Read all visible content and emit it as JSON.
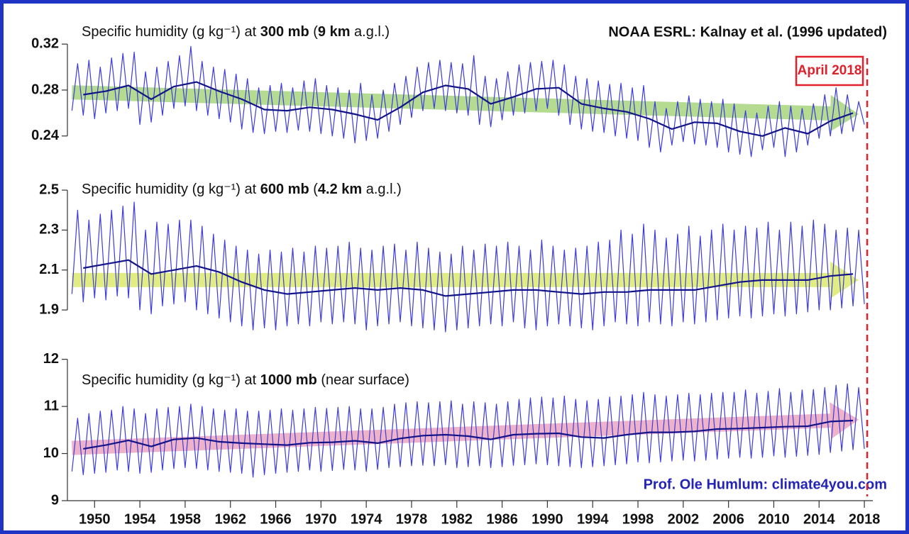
{
  "chart_data": {
    "type": "line",
    "source": "NOAA ESRL: Kalnay et al. (1996 updated)",
    "credit": "Prof. Ole Humlum: climate4you.com",
    "marker_label": "April 2018",
    "marker_x": 2018.25,
    "marker_color": "#e0202a",
    "xlim": [
      1947.6,
      2020
    ],
    "xticks": [
      1950,
      1954,
      1958,
      1962,
      1966,
      1970,
      1974,
      1978,
      1982,
      1986,
      1990,
      1994,
      1998,
      2002,
      2006,
      2010,
      2014,
      2018
    ],
    "x": [
      1948,
      1948.5,
      1949,
      1949.5,
      1950,
      1950.5,
      1951,
      1951.5,
      1952,
      1952.5,
      1953,
      1953.5,
      1954,
      1954.5,
      1955,
      1955.5,
      1956,
      1956.5,
      1957,
      1957.5,
      1958,
      1958.5,
      1959,
      1959.5,
      1960,
      1960.5,
      1961,
      1961.5,
      1962,
      1962.5,
      1963,
      1963.5,
      1964,
      1964.5,
      1965,
      1965.5,
      1966,
      1966.5,
      1967,
      1967.5,
      1968,
      1968.5,
      1969,
      1969.5,
      1970,
      1970.5,
      1971,
      1971.5,
      1972,
      1972.5,
      1973,
      1973.5,
      1974,
      1974.5,
      1975,
      1975.5,
      1976,
      1976.5,
      1977,
      1977.5,
      1978,
      1978.5,
      1979,
      1979.5,
      1980,
      1980.5,
      1981,
      1981.5,
      1982,
      1982.5,
      1983,
      1983.5,
      1984,
      1984.5,
      1985,
      1985.5,
      1986,
      1986.5,
      1987,
      1987.5,
      1988,
      1988.5,
      1989,
      1989.5,
      1990,
      1990.5,
      1991,
      1991.5,
      1992,
      1992.5,
      1993,
      1993.5,
      1994,
      1994.5,
      1995,
      1995.5,
      1996,
      1996.5,
      1997,
      1997.5,
      1998,
      1998.5,
      1999,
      1999.5,
      2000,
      2000.5,
      2001,
      2001.5,
      2002,
      2002.5,
      2003,
      2003.5,
      2004,
      2004.5,
      2005,
      2005.5,
      2006,
      2006.5,
      2007,
      2007.5,
      2008,
      2008.5,
      2009,
      2009.5,
      2010,
      2010.5,
      2011,
      2011.5,
      2012,
      2012.5,
      2013,
      2013.5,
      2014,
      2014.5,
      2015,
      2015.5,
      2016,
      2016.5,
      2017,
      2017.5,
      2018
    ],
    "smooth_x": [
      1949,
      1951,
      1953,
      1955,
      1957,
      1959,
      1961,
      1963,
      1965,
      1967,
      1969,
      1971,
      1973,
      1975,
      1977,
      1979,
      1981,
      1983,
      1985,
      1987,
      1989,
      1991,
      1993,
      1995,
      1997,
      1999,
      2001,
      2003,
      2005,
      2007,
      2009,
      2011,
      2013,
      2015,
      2017
    ],
    "panels": [
      {
        "title_parts": [
          "Specific humidity (g kg⁻¹) at ",
          "300 mb",
          " (",
          "9 km",
          " a.g.l.)"
        ],
        "ylim": [
          0.217,
          0.33
        ],
        "yticks": [
          0.24,
          0.28,
          0.32
        ],
        "trend": {
          "x": [
            1948,
            2017.5
          ],
          "values": [
            0.278,
            0.259
          ],
          "color": "#9ccf6a"
        },
        "series": [
          {
            "color": "#3b3be0",
            "values": [
              0.262,
              0.303,
              0.258,
              0.306,
              0.255,
              0.3,
              0.26,
              0.308,
              0.262,
              0.312,
              0.264,
              0.313,
              0.25,
              0.296,
              0.252,
              0.3,
              0.258,
              0.305,
              0.264,
              0.31,
              0.266,
              0.318,
              0.262,
              0.305,
              0.258,
              0.3,
              0.255,
              0.298,
              0.252,
              0.294,
              0.246,
              0.29,
              0.243,
              0.282,
              0.242,
              0.284,
              0.244,
              0.286,
              0.243,
              0.282,
              0.245,
              0.288,
              0.244,
              0.29,
              0.242,
              0.284,
              0.24,
              0.282,
              0.238,
              0.28,
              0.234,
              0.286,
              0.236,
              0.276,
              0.238,
              0.28,
              0.244,
              0.286,
              0.25,
              0.292,
              0.256,
              0.3,
              0.262,
              0.304,
              0.264,
              0.306,
              0.262,
              0.304,
              0.26,
              0.303,
              0.258,
              0.31,
              0.25,
              0.292,
              0.248,
              0.29,
              0.254,
              0.296,
              0.258,
              0.302,
              0.26,
              0.304,
              0.262,
              0.305,
              0.264,
              0.306,
              0.258,
              0.302,
              0.25,
              0.292,
              0.246,
              0.29,
              0.244,
              0.288,
              0.243,
              0.285,
              0.24,
              0.286,
              0.238,
              0.282,
              0.236,
              0.284,
              0.23,
              0.27,
              0.226,
              0.264,
              0.232,
              0.27,
              0.235,
              0.275,
              0.233,
              0.272,
              0.232,
              0.27,
              0.23,
              0.272,
              0.226,
              0.268,
              0.224,
              0.262,
              0.222,
              0.26,
              0.228,
              0.266,
              0.23,
              0.27,
              0.222,
              0.266,
              0.226,
              0.264,
              0.232,
              0.268,
              0.238,
              0.276,
              0.24,
              0.282,
              0.242,
              0.276,
              0.244,
              0.27,
              0.25
            ]
          },
          {
            "color": "#14148a",
            "smooth": true,
            "values": [
              0.276,
              0.279,
              0.284,
              0.272,
              0.283,
              0.287,
              0.279,
              0.272,
              0.263,
              0.262,
              0.265,
              0.263,
              0.259,
              0.254,
              0.265,
              0.278,
              0.284,
              0.281,
              0.268,
              0.274,
              0.281,
              0.282,
              0.268,
              0.264,
              0.261,
              0.255,
              0.246,
              0.252,
              0.251,
              0.244,
              0.24,
              0.247,
              0.242,
              0.253,
              0.26
            ]
          }
        ]
      },
      {
        "title_parts": [
          "Specific humidity (g kg⁻¹) at ",
          "600 mb",
          " (",
          "4.2 km",
          " a.g.l.)"
        ],
        "ylim": [
          1.73,
          2.55
        ],
        "yticks": [
          1.9,
          2.1,
          2.3,
          2.5
        ],
        "trend": {
          "x": [
            1948,
            2017.5
          ],
          "values": [
            2.05,
            2.05
          ],
          "color": "#d8e85a"
        },
        "series": [
          {
            "color": "#3b3be0",
            "values": [
              1.98,
              2.4,
              1.94,
              2.35,
              1.96,
              2.38,
              1.95,
              2.4,
              1.97,
              2.42,
              1.96,
              2.44,
              1.9,
              2.3,
              1.88,
              2.34,
              1.92,
              2.33,
              1.93,
              2.35,
              1.94,
              2.35,
              1.9,
              2.32,
              1.88,
              2.28,
              1.86,
              2.25,
              1.84,
              2.22,
              1.82,
              2.2,
              1.8,
              2.18,
              1.81,
              2.2,
              1.8,
              2.19,
              1.82,
              2.21,
              1.83,
              2.19,
              1.82,
              2.22,
              1.84,
              2.21,
              1.83,
              2.22,
              1.84,
              2.24,
              1.83,
              2.21,
              1.8,
              2.2,
              1.82,
              2.22,
              1.83,
              2.23,
              1.84,
              2.2,
              1.82,
              2.24,
              1.81,
              2.21,
              1.8,
              2.19,
              1.79,
              2.18,
              1.8,
              2.22,
              1.81,
              2.2,
              1.82,
              2.23,
              1.83,
              2.22,
              1.82,
              2.24,
              1.84,
              2.22,
              1.81,
              2.2,
              1.8,
              2.25,
              1.82,
              2.22,
              1.83,
              2.2,
              1.82,
              2.21,
              1.81,
              2.22,
              1.8,
              2.24,
              1.82,
              2.25,
              1.84,
              2.3,
              1.83,
              2.28,
              1.82,
              2.33,
              1.84,
              2.3,
              1.83,
              2.26,
              1.82,
              2.28,
              1.84,
              2.32,
              1.83,
              2.27,
              1.84,
              2.3,
              1.85,
              2.33,
              1.86,
              2.3,
              1.87,
              2.32,
              1.86,
              2.31,
              1.87,
              2.34,
              1.88,
              2.3,
              1.87,
              2.34,
              1.88,
              2.32,
              1.89,
              2.35,
              1.9,
              2.33,
              1.9,
              2.3,
              1.91,
              2.31,
              1.92,
              2.3,
              1.93
            ]
          },
          {
            "color": "#14148a",
            "smooth": true,
            "values": [
              2.11,
              2.13,
              2.15,
              2.08,
              2.1,
              2.12,
              2.09,
              2.04,
              2.0,
              1.98,
              1.99,
              2.0,
              2.01,
              2.0,
              2.01,
              2.0,
              1.97,
              1.98,
              1.99,
              2.0,
              2.0,
              1.99,
              1.98,
              1.99,
              1.99,
              2.0,
              2.0,
              2.0,
              2.02,
              2.04,
              2.05,
              2.05,
              2.05,
              2.07,
              2.08
            ]
          }
        ]
      },
      {
        "title_parts": [
          "Specific humidity (g kg⁻¹) at ",
          "1000 mb",
          " (near surface)"
        ],
        "ylim": [
          9,
          12.1
        ],
        "yticks": [
          9,
          10,
          11,
          12
        ],
        "trend": {
          "x": [
            1948,
            2017.5
          ],
          "values": [
            10.12,
            10.72
          ],
          "color": "#e99ab8"
        },
        "series": [
          {
            "color": "#3b3be0",
            "values": [
              9.62,
              10.75,
              9.55,
              10.85,
              9.58,
              10.9,
              9.6,
              10.92,
              9.65,
              11.0,
              9.62,
              10.95,
              9.58,
              10.85,
              9.6,
              10.95,
              9.65,
              10.98,
              9.68,
              11.0,
              9.7,
              11.05,
              9.68,
              11.0,
              9.65,
              10.95,
              9.62,
              10.92,
              9.6,
              10.95,
              9.58,
              10.9,
              9.5,
              10.9,
              9.55,
              10.92,
              9.58,
              10.95,
              9.6,
              10.92,
              9.62,
              10.95,
              9.65,
              10.98,
              9.62,
              10.96,
              9.64,
              10.98,
              9.66,
              11.0,
              9.65,
              10.95,
              9.62,
              10.95,
              9.66,
              10.98,
              9.7,
              11.05,
              9.72,
              11.08,
              9.74,
              11.1,
              9.75,
              11.08,
              9.74,
              11.1,
              9.76,
              11.12,
              9.7,
              11.05,
              9.72,
              11.1,
              9.74,
              11.08,
              9.7,
              11.05,
              9.72,
              11.1,
              9.75,
              11.15,
              9.76,
              11.18,
              9.78,
              11.2,
              9.76,
              11.18,
              9.74,
              11.22,
              9.72,
              11.15,
              9.7,
              11.12,
              9.72,
              11.15,
              9.74,
              11.2,
              9.76,
              11.22,
              9.78,
              11.25,
              9.82,
              11.3,
              9.8,
              11.25,
              9.82,
              11.22,
              9.84,
              11.25,
              9.86,
              11.28,
              9.84,
              11.25,
              9.86,
              11.28,
              9.88,
              11.3,
              9.9,
              11.3,
              9.92,
              11.35,
              9.9,
              11.28,
              9.92,
              11.32,
              9.95,
              11.38,
              9.92,
              11.3,
              9.94,
              11.35,
              9.96,
              11.36,
              9.98,
              11.4,
              10.02,
              11.45,
              10.05,
              11.48,
              10.08,
              11.4,
              10.1
            ]
          },
          {
            "color": "#14148a",
            "smooth": true,
            "values": [
              10.1,
              10.18,
              10.28,
              10.15,
              10.3,
              10.33,
              10.25,
              10.22,
              10.2,
              10.18,
              10.23,
              10.24,
              10.27,
              10.22,
              10.32,
              10.38,
              10.4,
              10.37,
              10.3,
              10.4,
              10.42,
              10.43,
              10.35,
              10.33,
              10.4,
              10.45,
              10.45,
              10.47,
              10.52,
              10.53,
              10.55,
              10.57,
              10.58,
              10.68,
              10.7
            ]
          }
        ]
      }
    ]
  }
}
